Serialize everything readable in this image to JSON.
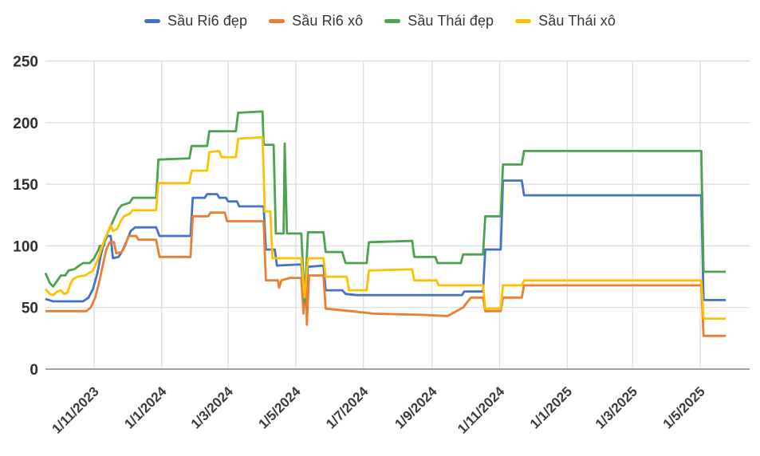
{
  "colors": {
    "background": "#ffffff",
    "grid": "#dcdcdc",
    "axis_line": "#a3a3a3",
    "tick_text": "#3a3a3a",
    "legend_text": "#353535"
  },
  "chart_data": {
    "type": "line",
    "title": "",
    "legend_position": "top",
    "grid": true,
    "y_axis": {
      "min": 0,
      "max": 250,
      "ticks": [
        0,
        50,
        100,
        150,
        200,
        250
      ]
    },
    "x_axis": {
      "tick_labels": [
        "1/11/2023",
        "1/1/2024",
        "1/3/2024",
        "1/5/2024",
        "1/7/2024",
        "1/9/2024",
        "1/11/2024",
        "1/1/2025",
        "1/3/2025",
        "1/5/2025"
      ],
      "tick_dates": [
        "2023-11-01",
        "2024-01-01",
        "2024-03-01",
        "2024-05-01",
        "2024-07-01",
        "2024-09-01",
        "2024-11-01",
        "2025-01-01",
        "2025-03-01",
        "2025-05-01"
      ]
    },
    "series": [
      {
        "name": "Sầu Ri6 đẹp",
        "slug": "sau-ri6-dep",
        "color": "#4472C4",
        "points": [
          [
            "2023-09-18",
            57
          ],
          [
            "2023-09-25",
            55
          ],
          [
            "2023-10-22",
            55
          ],
          [
            "2023-10-27",
            58
          ],
          [
            "2023-10-31",
            65
          ],
          [
            "2023-11-04",
            78
          ],
          [
            "2023-11-07",
            92
          ],
          [
            "2023-11-10",
            103
          ],
          [
            "2023-11-13",
            108
          ],
          [
            "2023-11-16",
            108
          ],
          [
            "2023-11-18",
            90
          ],
          [
            "2023-11-23",
            91
          ],
          [
            "2023-11-26",
            95
          ],
          [
            "2023-11-30",
            103
          ],
          [
            "2023-12-04",
            112
          ],
          [
            "2023-12-08",
            115
          ],
          [
            "2023-12-27",
            115
          ],
          [
            "2023-12-30",
            108
          ],
          [
            "2024-01-27",
            108
          ],
          [
            "2024-01-29",
            139
          ],
          [
            "2024-02-09",
            139
          ],
          [
            "2024-02-11",
            142
          ],
          [
            "2024-02-20",
            142
          ],
          [
            "2024-02-22",
            139
          ],
          [
            "2024-02-28",
            139
          ],
          [
            "2024-03-01",
            136
          ],
          [
            "2024-03-09",
            136
          ],
          [
            "2024-03-11",
            132
          ],
          [
            "2024-04-02",
            132
          ],
          [
            "2024-04-04",
            97
          ],
          [
            "2024-04-12",
            97
          ],
          [
            "2024-04-14",
            84
          ],
          [
            "2024-05-06",
            85
          ],
          [
            "2024-05-09",
            52
          ],
          [
            "2024-05-12",
            83
          ],
          [
            "2024-05-26",
            84
          ],
          [
            "2024-05-28",
            64
          ],
          [
            "2024-06-12",
            64
          ],
          [
            "2024-06-15",
            61
          ],
          [
            "2024-06-25",
            60
          ],
          [
            "2024-09-28",
            60
          ],
          [
            "2024-09-30",
            63
          ],
          [
            "2024-10-17",
            63
          ],
          [
            "2024-10-19",
            97
          ],
          [
            "2024-11-02",
            97
          ],
          [
            "2024-11-04",
            153
          ],
          [
            "2024-11-21",
            153
          ],
          [
            "2024-11-23",
            141
          ],
          [
            "2025-05-02",
            141
          ],
          [
            "2025-05-04",
            56
          ],
          [
            "2025-05-24",
            56
          ]
        ]
      },
      {
        "name": "Sầu Ri6 xô",
        "slug": "sau-ri6-xo",
        "color": "#ED7D31",
        "points": [
          [
            "2023-09-18",
            47
          ],
          [
            "2023-10-25",
            47
          ],
          [
            "2023-10-29",
            50
          ],
          [
            "2023-11-02",
            58
          ],
          [
            "2023-11-06",
            72
          ],
          [
            "2023-11-09",
            85
          ],
          [
            "2023-11-12",
            97
          ],
          [
            "2023-11-15",
            103
          ],
          [
            "2023-11-19",
            103
          ],
          [
            "2023-11-21",
            94
          ],
          [
            "2023-11-26",
            95
          ],
          [
            "2023-11-29",
            100
          ],
          [
            "2023-12-02",
            108
          ],
          [
            "2023-12-09",
            108
          ],
          [
            "2023-12-11",
            105
          ],
          [
            "2023-12-27",
            105
          ],
          [
            "2023-12-30",
            91
          ],
          [
            "2024-01-27",
            91
          ],
          [
            "2024-01-29",
            124
          ],
          [
            "2024-02-12",
            124
          ],
          [
            "2024-02-14",
            127
          ],
          [
            "2024-02-27",
            127
          ],
          [
            "2024-02-29",
            120
          ],
          [
            "2024-04-02",
            120
          ],
          [
            "2024-04-04",
            72
          ],
          [
            "2024-04-15",
            72
          ],
          [
            "2024-04-16",
            66
          ],
          [
            "2024-04-18",
            72
          ],
          [
            "2024-04-26",
            74
          ],
          [
            "2024-05-06",
            74
          ],
          [
            "2024-05-08",
            45
          ],
          [
            "2024-05-10",
            76
          ],
          [
            "2024-05-11",
            36
          ],
          [
            "2024-05-13",
            76
          ],
          [
            "2024-05-26",
            76
          ],
          [
            "2024-05-28",
            49
          ],
          [
            "2024-06-20",
            47
          ],
          [
            "2024-07-10",
            45
          ],
          [
            "2024-08-25",
            44
          ],
          [
            "2024-09-15",
            43
          ],
          [
            "2024-09-29",
            50
          ],
          [
            "2024-10-06",
            58
          ],
          [
            "2024-10-17",
            58
          ],
          [
            "2024-10-19",
            47
          ],
          [
            "2024-11-02",
            47
          ],
          [
            "2024-11-04",
            58
          ],
          [
            "2024-11-21",
            58
          ],
          [
            "2024-11-23",
            68
          ],
          [
            "2025-05-02",
            68
          ],
          [
            "2025-05-04",
            27
          ],
          [
            "2025-05-24",
            27
          ]
        ]
      },
      {
        "name": "Sầu Thái đẹp",
        "slug": "sau-thai-dep",
        "color": "#4BA24F",
        "points": [
          [
            "2023-09-18",
            78
          ],
          [
            "2023-09-22",
            70
          ],
          [
            "2023-09-25",
            67
          ],
          [
            "2023-09-29",
            72
          ],
          [
            "2023-10-02",
            76
          ],
          [
            "2023-10-06",
            76
          ],
          [
            "2023-10-09",
            80
          ],
          [
            "2023-10-14",
            81
          ],
          [
            "2023-10-17",
            83
          ],
          [
            "2023-10-22",
            86
          ],
          [
            "2023-10-28",
            86
          ],
          [
            "2023-11-01",
            90
          ],
          [
            "2023-11-05",
            97
          ],
          [
            "2023-11-06",
            100
          ],
          [
            "2023-11-10",
            100
          ],
          [
            "2023-11-11",
            106
          ],
          [
            "2023-11-14",
            112
          ],
          [
            "2023-11-17",
            118
          ],
          [
            "2023-11-20",
            124
          ],
          [
            "2023-11-23",
            130
          ],
          [
            "2023-11-26",
            133
          ],
          [
            "2023-12-03",
            135
          ],
          [
            "2023-12-06",
            139
          ],
          [
            "2023-12-27",
            139
          ],
          [
            "2023-12-29",
            170
          ],
          [
            "2024-01-26",
            171
          ],
          [
            "2024-01-28",
            181
          ],
          [
            "2024-02-11",
            181
          ],
          [
            "2024-02-13",
            193
          ],
          [
            "2024-03-08",
            193
          ],
          [
            "2024-03-10",
            208
          ],
          [
            "2024-04-01",
            209
          ],
          [
            "2024-04-02",
            182
          ],
          [
            "2024-04-11",
            182
          ],
          [
            "2024-04-13",
            110
          ],
          [
            "2024-04-20",
            110
          ],
          [
            "2024-04-21",
            183
          ],
          [
            "2024-04-23",
            110
          ],
          [
            "2024-05-06",
            110
          ],
          [
            "2024-05-09",
            54
          ],
          [
            "2024-05-12",
            111
          ],
          [
            "2024-05-26",
            111
          ],
          [
            "2024-05-28",
            95
          ],
          [
            "2024-06-12",
            95
          ],
          [
            "2024-06-15",
            86
          ],
          [
            "2024-07-04",
            86
          ],
          [
            "2024-07-06",
            103
          ],
          [
            "2024-08-14",
            104
          ],
          [
            "2024-08-16",
            91
          ],
          [
            "2024-09-04",
            91
          ],
          [
            "2024-09-06",
            86
          ],
          [
            "2024-09-27",
            86
          ],
          [
            "2024-09-29",
            93
          ],
          [
            "2024-10-17",
            93
          ],
          [
            "2024-10-19",
            124
          ],
          [
            "2024-11-02",
            124
          ],
          [
            "2024-11-04",
            166
          ],
          [
            "2024-11-21",
            166
          ],
          [
            "2024-11-23",
            177
          ],
          [
            "2025-05-02",
            177
          ],
          [
            "2025-05-04",
            79
          ],
          [
            "2025-05-24",
            79
          ]
        ]
      },
      {
        "name": "Sầu Thái xô",
        "slug": "sau-thai-xo",
        "color": "#FFC000",
        "points": [
          [
            "2023-09-18",
            65
          ],
          [
            "2023-09-22",
            61
          ],
          [
            "2023-09-25",
            60
          ],
          [
            "2023-09-29",
            63
          ],
          [
            "2023-10-02",
            64
          ],
          [
            "2023-10-05",
            61
          ],
          [
            "2023-10-08",
            62
          ],
          [
            "2023-10-11",
            70
          ],
          [
            "2023-10-13",
            73
          ],
          [
            "2023-10-17",
            75
          ],
          [
            "2023-10-24",
            76
          ],
          [
            "2023-10-31",
            80
          ],
          [
            "2023-11-04",
            88
          ],
          [
            "2023-11-07",
            96
          ],
          [
            "2023-11-10",
            104
          ],
          [
            "2023-11-13",
            110
          ],
          [
            "2023-11-16",
            117
          ],
          [
            "2023-11-18",
            112
          ],
          [
            "2023-11-22",
            114
          ],
          [
            "2023-11-25",
            120
          ],
          [
            "2023-11-28",
            124
          ],
          [
            "2023-12-03",
            126
          ],
          [
            "2023-12-06",
            129
          ],
          [
            "2023-12-27",
            129
          ],
          [
            "2023-12-29",
            151
          ],
          [
            "2024-01-26",
            151
          ],
          [
            "2024-01-28",
            161
          ],
          [
            "2024-02-11",
            161
          ],
          [
            "2024-02-13",
            176
          ],
          [
            "2024-02-22",
            177
          ],
          [
            "2024-02-24",
            172
          ],
          [
            "2024-03-08",
            172
          ],
          [
            "2024-03-10",
            187
          ],
          [
            "2024-03-30",
            188
          ],
          [
            "2024-04-01",
            188
          ],
          [
            "2024-04-02",
            160
          ],
          [
            "2024-04-03",
            128
          ],
          [
            "2024-04-08",
            128
          ],
          [
            "2024-04-10",
            90
          ],
          [
            "2024-05-06",
            90
          ],
          [
            "2024-05-09",
            58
          ],
          [
            "2024-05-12",
            90
          ],
          [
            "2024-05-26",
            90
          ],
          [
            "2024-05-28",
            75
          ],
          [
            "2024-06-16",
            75
          ],
          [
            "2024-06-18",
            64
          ],
          [
            "2024-07-04",
            64
          ],
          [
            "2024-07-06",
            80
          ],
          [
            "2024-08-14",
            81
          ],
          [
            "2024-08-16",
            72
          ],
          [
            "2024-09-05",
            72
          ],
          [
            "2024-09-07",
            68
          ],
          [
            "2024-10-17",
            68
          ],
          [
            "2024-10-19",
            49
          ],
          [
            "2024-11-02",
            49
          ],
          [
            "2024-11-04",
            68
          ],
          [
            "2024-11-21",
            68
          ],
          [
            "2024-11-23",
            72
          ],
          [
            "2025-05-02",
            72
          ],
          [
            "2025-05-04",
            41
          ],
          [
            "2025-05-24",
            41
          ]
        ]
      }
    ]
  }
}
